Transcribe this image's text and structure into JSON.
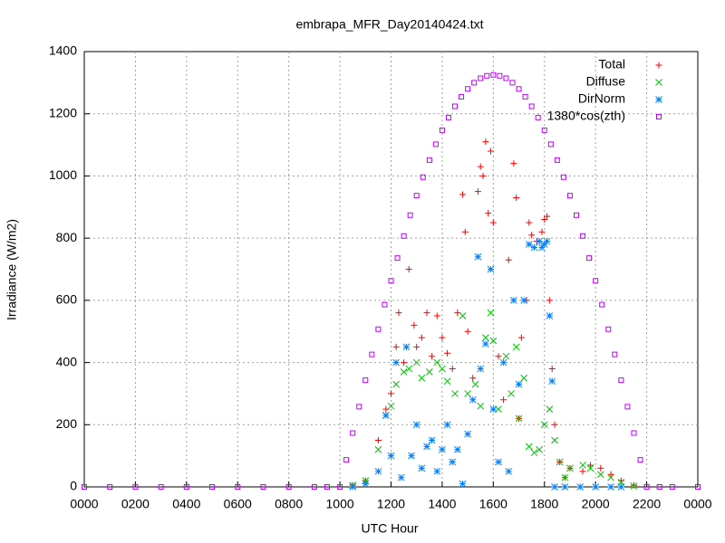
{
  "chart_data": {
    "type": "scatter",
    "title": "embrapa_MFR_Day20140424.txt",
    "xlabel": "UTC Hour",
    "ylabel": "Irradiance (W/m2)",
    "xlim": [
      0,
      24
    ],
    "ylim": [
      0,
      1400
    ],
    "xticks": [
      {
        "value": 0,
        "label": "0000"
      },
      {
        "value": 2,
        "label": "0200"
      },
      {
        "value": 4,
        "label": "0400"
      },
      {
        "value": 6,
        "label": "0600"
      },
      {
        "value": 8,
        "label": "0800"
      },
      {
        "value": 10,
        "label": "1000"
      },
      {
        "value": 12,
        "label": "1200"
      },
      {
        "value": 14,
        "label": "1400"
      },
      {
        "value": 16,
        "label": "1600"
      },
      {
        "value": 18,
        "label": "1800"
      },
      {
        "value": 20,
        "label": "2000"
      },
      {
        "value": 22,
        "label": "2200"
      },
      {
        "value": 24,
        "label": "0000"
      }
    ],
    "yticks": [
      0,
      200,
      400,
      600,
      800,
      1000,
      1200,
      1400
    ],
    "grid": true,
    "legend": "top-right",
    "series": [
      {
        "name": "Total",
        "color": "#ff0000",
        "marker": "plus",
        "x": [
          10.5,
          11,
          11.5,
          11.8,
          12,
          12.2,
          12.3,
          12.5,
          12.7,
          12.9,
          13,
          13.2,
          13.4,
          13.6,
          13.8,
          14,
          14.2,
          14.4,
          14.6,
          14.8,
          14.9,
          15,
          15.2,
          15.4,
          15.5,
          15.6,
          15.7,
          15.8,
          15.9,
          16,
          16.2,
          16.4,
          16.6,
          16.8,
          16.9,
          17,
          17.1,
          17.3,
          17.4,
          17.5,
          17.7,
          17.9,
          18,
          18.1,
          18.2,
          18.3,
          18.4,
          18.6,
          18.8,
          19,
          19.5,
          19.8,
          20.2,
          20.6,
          21,
          21.5
        ],
        "values": [
          5,
          20,
          150,
          250,
          300,
          450,
          560,
          400,
          700,
          520,
          450,
          480,
          560,
          420,
          550,
          480,
          430,
          380,
          560,
          940,
          820,
          500,
          350,
          950,
          1030,
          1000,
          1110,
          880,
          1080,
          850,
          420,
          280,
          730,
          1040,
          930,
          220,
          480,
          600,
          850,
          810,
          790,
          820,
          860,
          870,
          600,
          380,
          200,
          80,
          30,
          60,
          50,
          70,
          60,
          40,
          20,
          5
        ]
      },
      {
        "name": "Diffuse",
        "color": "#00c000",
        "marker": "cross",
        "x": [
          10.5,
          11,
          11.5,
          11.8,
          12,
          12.2,
          12.5,
          12.7,
          13,
          13.2,
          13.5,
          13.8,
          14,
          14.2,
          14.5,
          14.8,
          15,
          15.3,
          15.5,
          15.7,
          15.9,
          16,
          16.2,
          16.5,
          16.7,
          16.9,
          17,
          17.2,
          17.4,
          17.6,
          17.8,
          18,
          18.2,
          18.4,
          18.6,
          18.8,
          19,
          19.5,
          19.8,
          20.2,
          20.6,
          21,
          21.5
        ],
        "values": [
          5,
          20,
          120,
          230,
          260,
          330,
          370,
          380,
          400,
          350,
          370,
          400,
          380,
          340,
          300,
          550,
          300,
          330,
          260,
          480,
          560,
          470,
          250,
          420,
          300,
          450,
          220,
          350,
          130,
          110,
          120,
          200,
          250,
          150,
          80,
          30,
          60,
          70,
          60,
          40,
          30,
          15,
          3
        ]
      },
      {
        "name": "DirNorm",
        "color": "#0080ff",
        "marker": "star",
        "x": [
          10.5,
          11,
          11.5,
          11.8,
          12,
          12.2,
          12.4,
          12.6,
          12.8,
          13,
          13.2,
          13.4,
          13.6,
          13.8,
          14,
          14.2,
          14.4,
          14.6,
          14.8,
          15,
          15.2,
          15.4,
          15.5,
          15.7,
          15.9,
          16,
          16.2,
          16.4,
          16.6,
          16.8,
          17,
          17.2,
          17.4,
          17.6,
          17.8,
          17.9,
          18,
          18.1,
          18.2,
          18.3,
          18.4,
          18.8,
          19.4,
          20,
          20.6,
          21
        ],
        "values": [
          0,
          10,
          50,
          230,
          100,
          400,
          30,
          450,
          100,
          200,
          60,
          130,
          150,
          50,
          120,
          200,
          80,
          120,
          10,
          170,
          280,
          740,
          380,
          460,
          700,
          250,
          80,
          400,
          50,
          600,
          330,
          600,
          780,
          770,
          790,
          770,
          780,
          790,
          550,
          340,
          0,
          0,
          0,
          0,
          0,
          0
        ]
      },
      {
        "name": "1380*cos(zth)",
        "color": "#c000ff",
        "marker": "square",
        "x": [
          0,
          1,
          2,
          3,
          4,
          5,
          6,
          7,
          8,
          9,
          9.5,
          10,
          10.25,
          10.5,
          10.75,
          11,
          11.25,
          11.5,
          11.75,
          12,
          12.25,
          12.5,
          12.75,
          13,
          13.25,
          13.5,
          13.75,
          14,
          14.25,
          14.5,
          14.75,
          15,
          15.25,
          15.5,
          15.75,
          16,
          16.25,
          16.5,
          16.75,
          17,
          17.25,
          17.5,
          17.75,
          18,
          18.25,
          18.5,
          18.75,
          19,
          19.25,
          19.5,
          19.75,
          20,
          20.25,
          20.5,
          20.75,
          21,
          21.25,
          21.5,
          21.75,
          22,
          22.5,
          23,
          24
        ],
        "values": [
          0,
          0,
          0,
          0,
          0,
          0,
          0,
          0,
          0,
          0,
          0,
          0,
          87,
          173,
          258,
          343,
          426,
          507,
          586,
          663,
          736,
          807,
          874,
          937,
          996,
          1051,
          1102,
          1147,
          1188,
          1224,
          1255,
          1280,
          1300,
          1314,
          1322,
          1325,
          1322,
          1314,
          1300,
          1280,
          1255,
          1224,
          1188,
          1147,
          1102,
          1051,
          996,
          937,
          874,
          807,
          736,
          663,
          586,
          507,
          426,
          343,
          258,
          173,
          87,
          0,
          0,
          0,
          0
        ]
      }
    ]
  }
}
